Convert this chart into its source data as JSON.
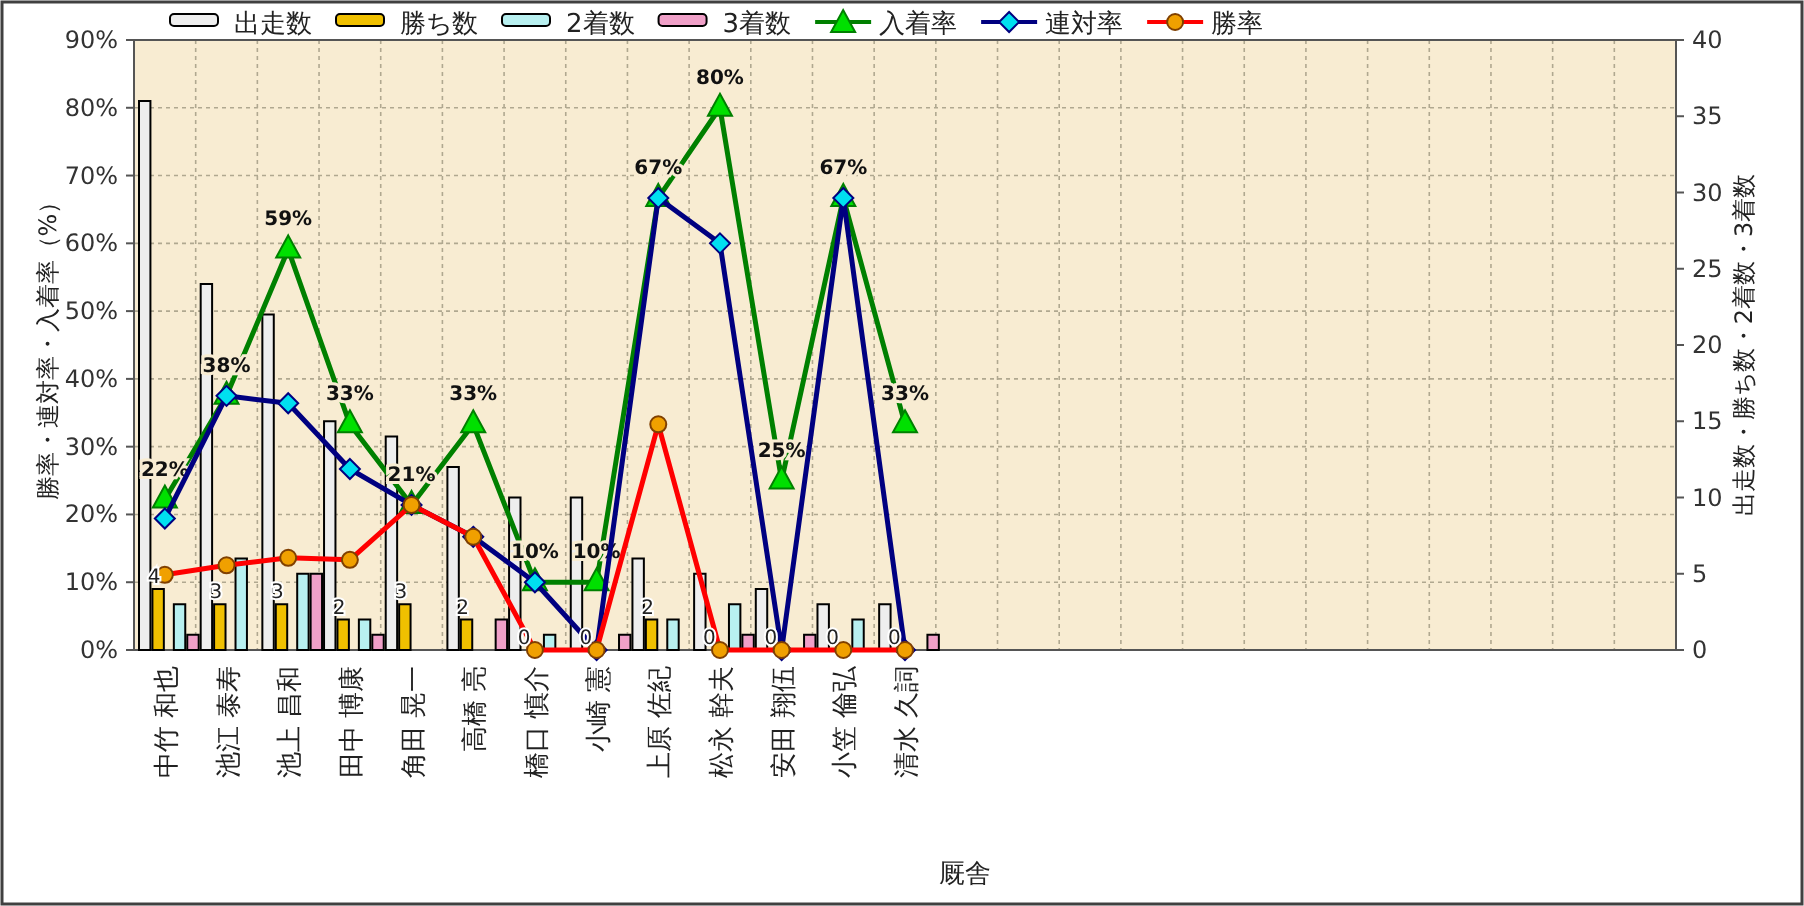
{
  "chart_data": {
    "type": "bar",
    "xlabel": "厩舎",
    "ylabel": "勝率・連対率・入着率（%）",
    "y2label": "出走数・勝ち数・2着数・3着数",
    "categories": [
      "中竹 和也",
      "池江 泰寿",
      "池上 昌和",
      "田中 博康",
      "角田 晃一",
      "高橋 亮",
      "橋口 慎介",
      "小崎 憲",
      "上原 佐紀",
      "松永 幹夫",
      "安田 翔伍",
      "小笠 倫弘",
      "清水 久詞",
      null,
      null,
      null,
      null,
      null,
      null,
      null,
      null,
      null,
      null,
      null,
      null
    ],
    "ylim": [
      0,
      90
    ],
    "yticks": [
      {
        "value": 0,
        "label": "0%"
      },
      {
        "value": 10,
        "label": "10%"
      },
      {
        "value": 20,
        "label": "20%"
      },
      {
        "value": 30,
        "label": "30%"
      },
      {
        "value": 40,
        "label": "40%"
      },
      {
        "value": 50,
        "label": "50%"
      },
      {
        "value": 60,
        "label": "60%"
      },
      {
        "value": 70,
        "label": "70%"
      },
      {
        "value": 80,
        "label": "80%"
      },
      {
        "value": 90,
        "label": "90%"
      }
    ],
    "y2lim": [
      0,
      40
    ],
    "y2ticks": [
      0,
      5,
      10,
      15,
      20,
      25,
      30,
      35,
      40
    ],
    "grid": true,
    "legend": "top",
    "series": [
      {
        "name": "出走数",
        "axis": "y2",
        "color": "#eeeeee",
        "values": [
          36,
          24,
          22,
          15,
          14,
          12,
          10,
          10,
          6,
          5,
          4,
          3,
          3,
          null,
          null,
          null,
          null,
          null,
          null,
          null,
          null,
          null,
          null,
          null,
          null
        ]
      },
      {
        "name": "勝ち数",
        "axis": "y2",
        "color": "#f0c000",
        "values": [
          4,
          3,
          3,
          2,
          3,
          2,
          0,
          0,
          2,
          0,
          0,
          0,
          0,
          null,
          null,
          null,
          null,
          null,
          null,
          null,
          null,
          null,
          null,
          null,
          null
        ],
        "value_labels": [
          "4",
          "3",
          "3",
          "2",
          "3",
          "2",
          "0",
          "0",
          "2",
          "0",
          "0",
          "0",
          "0",
          null,
          null,
          null,
          null,
          null,
          null,
          null,
          null,
          null,
          null,
          null,
          null
        ]
      },
      {
        "name": "2着数",
        "axis": "y2",
        "color": "#b8f0f0",
        "values": [
          3,
          6,
          5,
          2,
          0,
          0,
          1,
          0,
          2,
          3,
          0,
          2,
          0,
          null,
          null,
          null,
          null,
          null,
          null,
          null,
          null,
          null,
          null,
          null,
          null
        ]
      },
      {
        "name": "3着数",
        "axis": "y2",
        "color": "#f0a0c8",
        "values": [
          1,
          0,
          5,
          1,
          0,
          2,
          0,
          1,
          0,
          1,
          1,
          0,
          1,
          null,
          null,
          null,
          null,
          null,
          null,
          null,
          null,
          null,
          null,
          null,
          null
        ]
      },
      {
        "name": "入着率",
        "type": "line",
        "marker": "triangle",
        "color": "#008000",
        "values": [
          22.2,
          37.5,
          59.1,
          33.3,
          21.4,
          33.3,
          10,
          10,
          66.7,
          80,
          25,
          66.7,
          33.3,
          null,
          null,
          null,
          null,
          null,
          null,
          null,
          null,
          null,
          null,
          null,
          null
        ],
        "value_labels": [
          "22%",
          "38%",
          "59%",
          "33%",
          "21%",
          "33%",
          "10%",
          "10%",
          "67%",
          "80%",
          "25%",
          "67%",
          "33%",
          null,
          null,
          null,
          null,
          null,
          null,
          null,
          null,
          null,
          null,
          null,
          null
        ]
      },
      {
        "name": "連対率",
        "type": "line",
        "marker": "diamond",
        "color": "#000080",
        "values": [
          19.4,
          37.5,
          36.4,
          26.7,
          21.4,
          16.7,
          10,
          0,
          66.7,
          60,
          0,
          66.7,
          0,
          null,
          null,
          null,
          null,
          null,
          null,
          null,
          null,
          null,
          null,
          null,
          null
        ]
      },
      {
        "name": "勝率",
        "type": "line",
        "marker": "circle",
        "color": "#ff0000",
        "values": [
          11.1,
          12.5,
          13.6,
          13.3,
          21.4,
          16.7,
          0,
          0,
          33.3,
          0,
          0,
          0,
          0,
          null,
          null,
          null,
          null,
          null,
          null,
          null,
          null,
          null,
          null,
          null,
          null
        ]
      }
    ]
  }
}
